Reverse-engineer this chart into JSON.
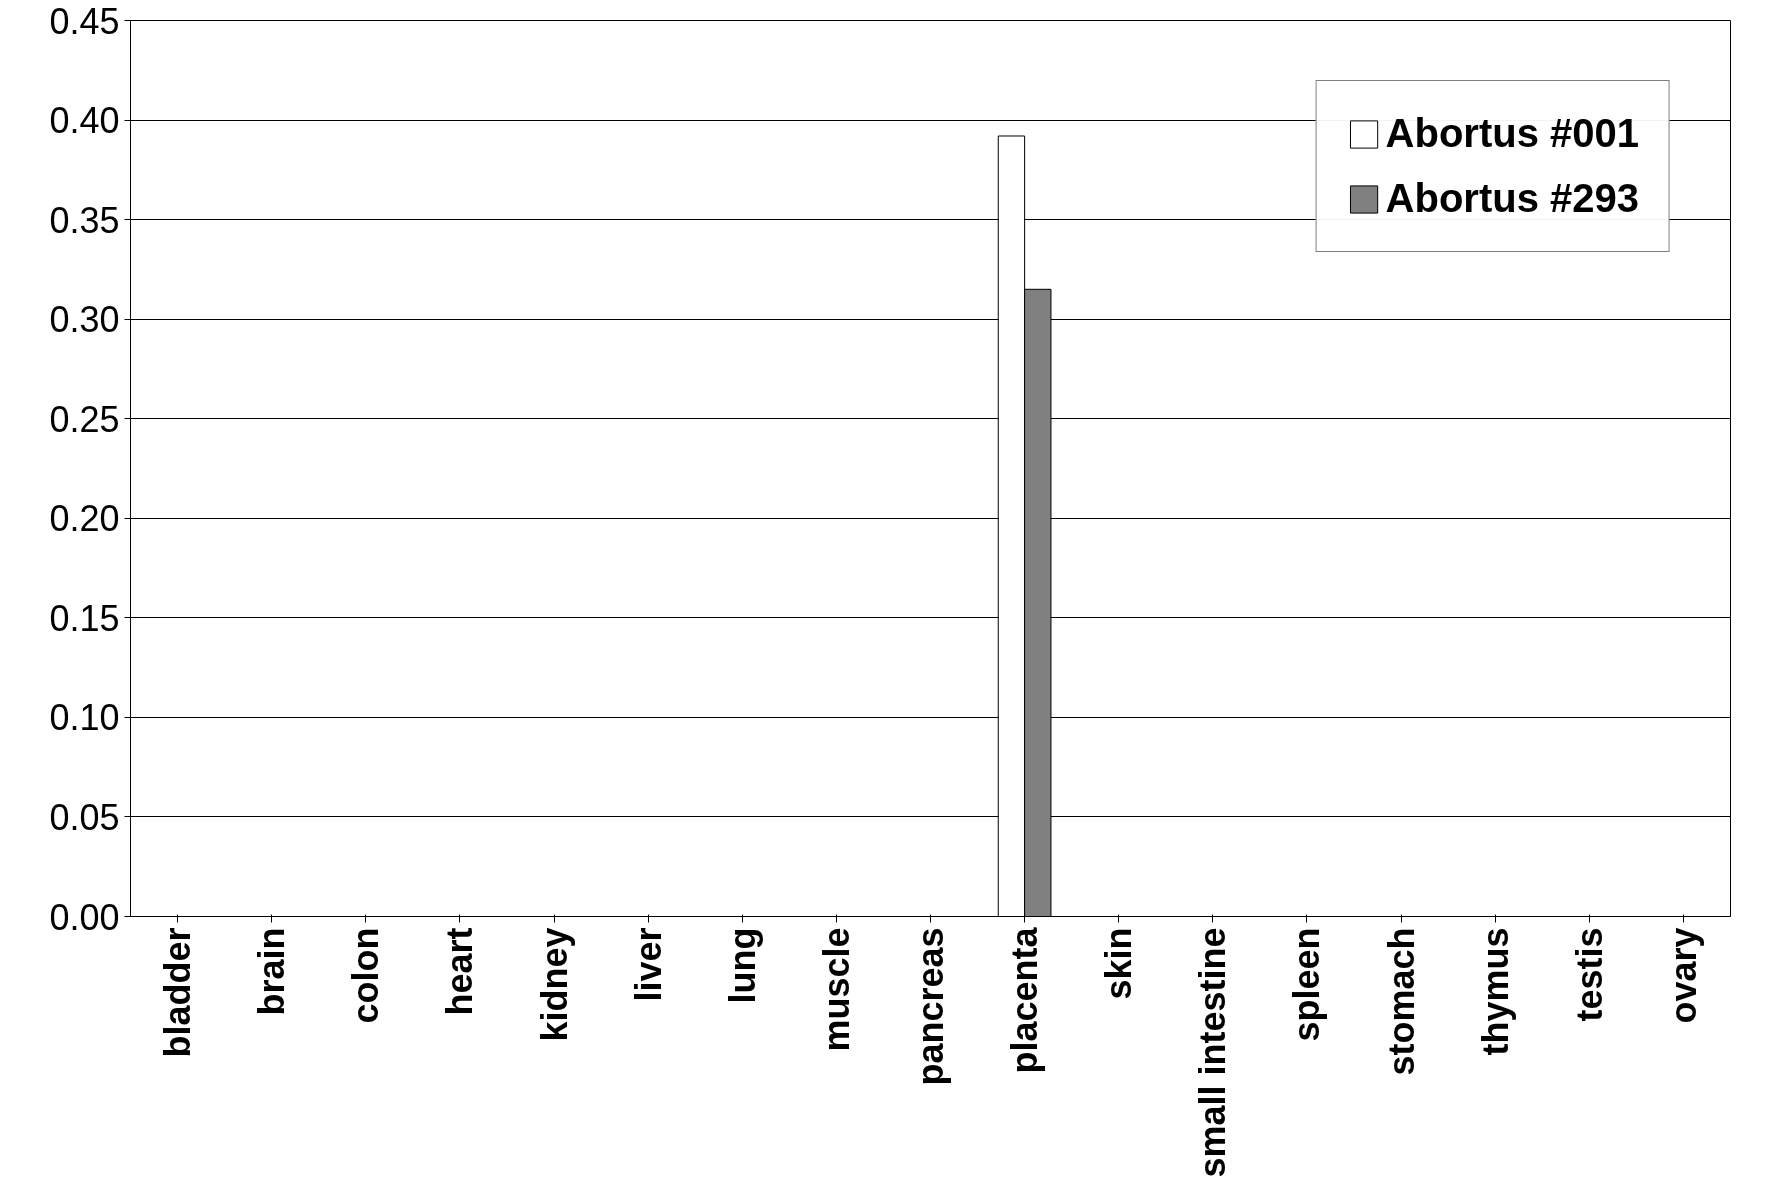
{
  "chart_data": {
    "type": "bar",
    "categories": [
      "bladder",
      "brain",
      "colon",
      "heart",
      "kidney",
      "liver",
      "lung",
      "muscle",
      "pancreas",
      "placenta",
      "skin",
      "small intestine",
      "spleen",
      "stomach",
      "thymus",
      "testis",
      "ovary"
    ],
    "series": [
      {
        "name": "Abortus #001",
        "color": "#ffffff",
        "values": [
          null,
          null,
          null,
          null,
          null,
          null,
          null,
          null,
          null,
          0.392,
          null,
          null,
          null,
          null,
          null,
          null,
          null
        ]
      },
      {
        "name": "Abortus #293",
        "color": "#808080",
        "values": [
          null,
          null,
          null,
          null,
          null,
          null,
          null,
          null,
          null,
          0.315,
          null,
          null,
          null,
          null,
          null,
          null,
          null
        ]
      }
    ],
    "ylim": [
      0,
      0.45
    ],
    "yticks": [
      {
        "value": 0,
        "label": "0.00"
      },
      {
        "value": 0.05,
        "label": "0.05"
      },
      {
        "value": 0.1,
        "label": "0.10"
      },
      {
        "value": 0.15,
        "label": "0.15"
      },
      {
        "value": 0.2,
        "label": "0.20"
      },
      {
        "value": 0.25,
        "label": "0.25"
      },
      {
        "value": 0.3,
        "label": "0.30"
      },
      {
        "value": 0.35,
        "label": "0.35"
      },
      {
        "value": 0.4,
        "label": "0.40"
      },
      {
        "value": 0.45,
        "label": "0.45"
      }
    ],
    "grid": "y",
    "legend": "top right"
  }
}
